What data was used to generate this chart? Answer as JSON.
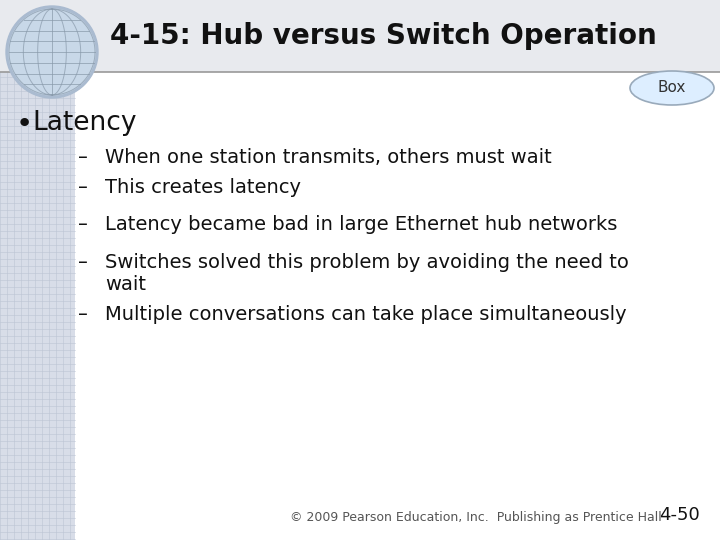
{
  "title": "4-15: Hub versus Switch Operation",
  "box_label": "Box",
  "bullet_label": "Latency",
  "sub_items": [
    "When one station transmits, others must wait",
    "This creates latency",
    "Latency became bad in large Ethernet hub networks",
    "Switches solved this problem by avoiding the need to\nwait",
    "Multiple conversations can take place simultaneously"
  ],
  "footer": "© 2009 Pearson Education, Inc.  Publishing as Prentice Hall",
  "page_num": "4-50",
  "title_color": "#111111",
  "text_color": "#111111",
  "footer_color": "#555555",
  "title_fontsize": 20,
  "bullet_fontsize": 19,
  "sub_fontsize": 14,
  "footer_fontsize": 9,
  "page_fontsize": 13,
  "left_bg_color": "#d8dde8",
  "left_bg_line_color": "#bcc4d4",
  "top_bar_color": "#e8eaee",
  "sep_line_color": "#999999",
  "box_face": "#ddeeff",
  "box_edge": "#99aabb",
  "globe_outer": "#aabbd0",
  "globe_inner": "#c8d8e8",
  "globe_line": "#8899aa"
}
